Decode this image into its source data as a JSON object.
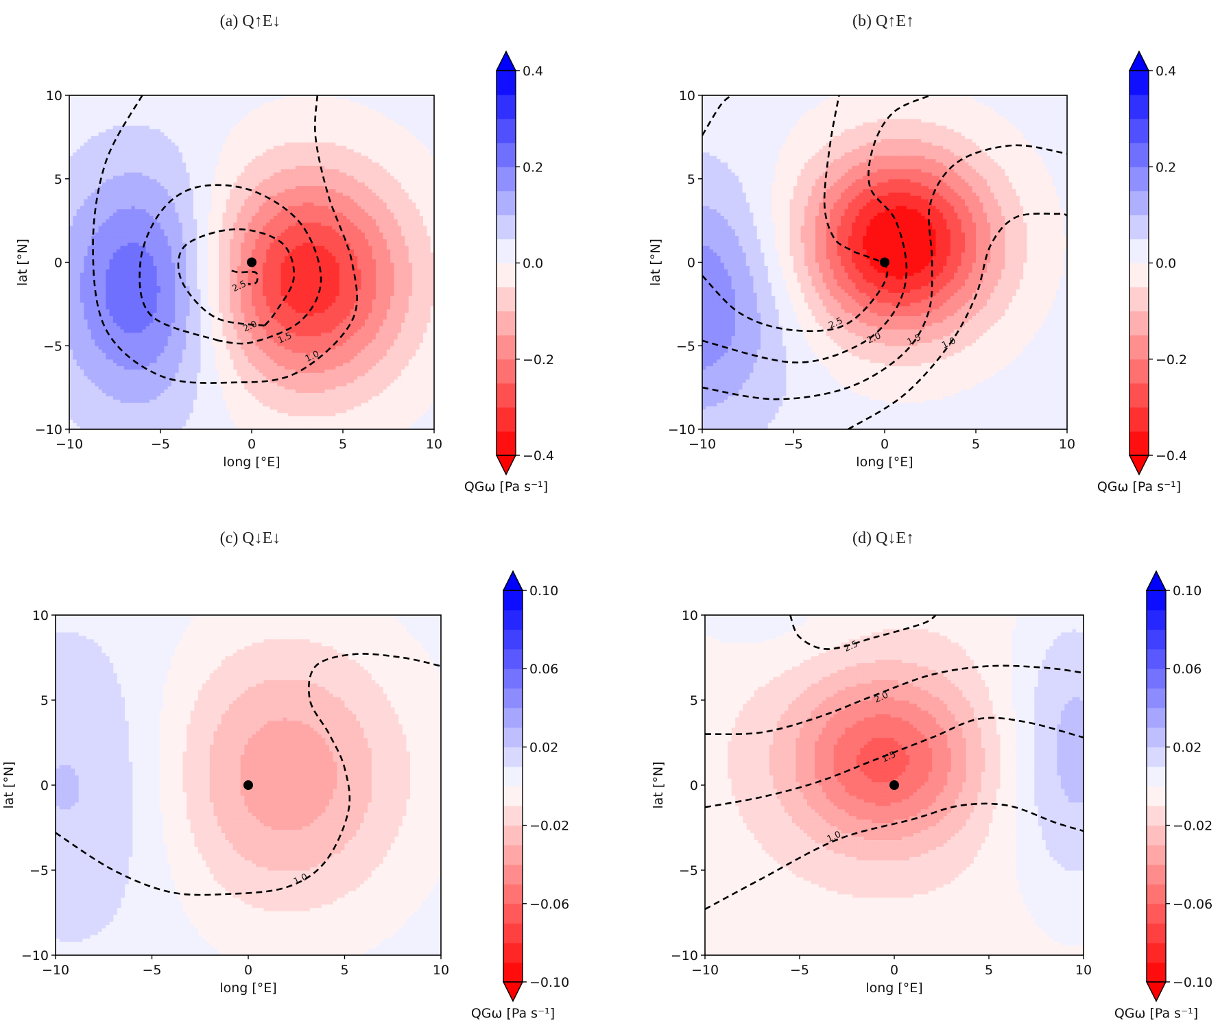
{
  "chart_data": [
    {
      "id": "a",
      "type": "heatmap",
      "title": "(a) Q↑E↓",
      "xlabel": "long [°E]",
      "ylabel": "lat [°N]",
      "xlim": [
        -10,
        10
      ],
      "ylim": [
        -10,
        10
      ],
      "xticks": [
        -10,
        -5,
        0,
        5,
        10
      ],
      "yticks": [
        -10,
        -5,
        0,
        5,
        10
      ],
      "xtick_labels": [
        "−10",
        "−5",
        "0",
        "5",
        "10"
      ],
      "ytick_labels": [
        "−10",
        "−5",
        "0",
        "5",
        "10"
      ],
      "colorbar": {
        "label": "QGω [Pa s⁻¹]",
        "range": [
          -0.4,
          0.4
        ],
        "step": 0.05,
        "ticks": [
          0.4,
          0.2,
          0.0,
          -0.2,
          -0.4
        ],
        "tick_labels": [
          "0.4",
          "0.2",
          "0.0",
          "−0.2",
          "−0.4"
        ],
        "extend": "both"
      },
      "background_value": 0.02,
      "features": [
        {
          "kind": "min",
          "x": 3.0,
          "y": -1.0,
          "amp": -0.36,
          "sx": 5.5,
          "sy": 6.5
        },
        {
          "kind": "max",
          "x": -6.0,
          "y": -1.5,
          "amp": 0.23,
          "sx": 4.5,
          "sy": 7.0
        }
      ],
      "marker": {
        "x": 0,
        "y": 0
      },
      "contours": [
        {
          "level": "1.0",
          "label_at": [
            3.3,
            -5.6
          ],
          "points": [
            [
              -6,
              10
            ],
            [
              -8,
              6
            ],
            [
              -8.7,
              1
            ],
            [
              -8,
              -4
            ],
            [
              -5,
              -6.8
            ],
            [
              -1,
              -7.2
            ],
            [
              2.5,
              -6.6
            ],
            [
              5.5,
              -3.5
            ],
            [
              5.5,
              0
            ],
            [
              4.2,
              4
            ],
            [
              3.5,
              7.5
            ],
            [
              3.6,
              10
            ]
          ]
        },
        {
          "level": "1.5",
          "label_at": [
            1.8,
            -4.5
          ],
          "points": [
            [
              -1.8,
              -4.7
            ],
            [
              -5.5,
              -3.2
            ],
            [
              -6.1,
              0
            ],
            [
              -5,
              3
            ],
            [
              -3,
              4.5
            ],
            [
              0,
              4.3
            ],
            [
              2.7,
              2.3
            ],
            [
              3.8,
              -1
            ],
            [
              2.7,
              -3.5
            ],
            [
              0,
              -4.8
            ],
            [
              -1.8,
              -4.7
            ]
          ]
        },
        {
          "level": "2.0",
          "label_at": [
            -0.1,
            -3.8
          ],
          "points": [
            [
              0.7,
              -3.8
            ],
            [
              -2,
              -3.3
            ],
            [
              -3.8,
              -1.2
            ],
            [
              -3.8,
              0.8
            ],
            [
              -2,
              1.8
            ],
            [
              0,
              1.9
            ],
            [
              1.8,
              1
            ],
            [
              2.3,
              -1
            ],
            [
              1.3,
              -3
            ],
            [
              0.7,
              -3.8
            ]
          ]
        },
        {
          "level": "2.5",
          "label_at": [
            -0.7,
            -1.4
          ],
          "points": [
            [
              -1.1,
              -0.5
            ],
            [
              -0.7,
              -0.6
            ],
            [
              0.2,
              -0.6
            ],
            [
              0.3,
              -1.1
            ],
            [
              0.1,
              -1.3
            ],
            [
              -0.2,
              -1.3
            ]
          ]
        }
      ]
    },
    {
      "id": "b",
      "type": "heatmap",
      "title": "(b) Q↑E↑",
      "xlabel": "long [°E]",
      "ylabel": "lat [°N]",
      "xlim": [
        -10,
        10
      ],
      "ylim": [
        -10,
        10
      ],
      "xticks": [
        -10,
        -5,
        0,
        5,
        10
      ],
      "yticks": [
        -10,
        -5,
        0,
        5,
        10
      ],
      "xtick_labels": [
        "−10",
        "−5",
        "0",
        "5",
        "10"
      ],
      "ytick_labels": [
        "−10",
        "−5",
        "0",
        "5",
        "10"
      ],
      "colorbar": {
        "label": "QGω [Pa s⁻¹]",
        "range": [
          -0.4,
          0.4
        ],
        "step": 0.05,
        "ticks": [
          0.4,
          0.2,
          0.0,
          -0.2,
          -0.4
        ],
        "tick_labels": [
          "0.4",
          "0.2",
          "0.0",
          "−0.2",
          "−0.4"
        ],
        "extend": "both"
      },
      "background_value": 0.02,
      "features": [
        {
          "kind": "min",
          "x": 0.8,
          "y": 1.2,
          "amp": -0.43,
          "sx": 5.2,
          "sy": 5.5
        },
        {
          "kind": "max",
          "x": -10.5,
          "y": -2.5,
          "amp": 0.18,
          "sx": 5.0,
          "sy": 7.0
        }
      ],
      "marker": {
        "x": 0,
        "y": 0
      },
      "contours": [
        {
          "level": "1.0",
          "label_at": [
            3.5,
            -4.8
          ],
          "points": [
            [
              -2,
              -10
            ],
            [
              1,
              -8
            ],
            [
              3.5,
              -5
            ],
            [
              5,
              -2
            ],
            [
              5.8,
              1
            ],
            [
              7.2,
              2.7
            ],
            [
              9.5,
              2.9
            ],
            [
              10,
              2.8
            ]
          ]
        },
        {
          "level": "1.5",
          "label_at": [
            1.6,
            -4.6
          ],
          "points": [
            [
              -10,
              -7.5
            ],
            [
              -6,
              -8.2
            ],
            [
              -2,
              -7.5
            ],
            [
              1,
              -5.5
            ],
            [
              2.4,
              -3
            ],
            [
              2.6,
              0
            ],
            [
              2.5,
              3.5
            ],
            [
              4,
              6
            ],
            [
              7,
              7
            ],
            [
              10,
              6.5
            ]
          ]
        },
        {
          "level": "2.0",
          "label_at": [
            -0.6,
            -4.5
          ],
          "points": [
            [
              -10,
              -4.7
            ],
            [
              -5,
              -6
            ],
            [
              -1.5,
              -5
            ],
            [
              0.5,
              -3
            ],
            [
              1.2,
              -0.5
            ],
            [
              0.6,
              2.5
            ],
            [
              -0.8,
              4.5
            ],
            [
              -0.6,
              7
            ],
            [
              0.5,
              9
            ],
            [
              2.5,
              10
            ]
          ]
        },
        {
          "level": "2.5",
          "label_at": [
            -2.7,
            -3.6
          ],
          "points": [
            [
              -10,
              -0.8
            ],
            [
              -8,
              -3
            ],
            [
              -5.5,
              -4
            ],
            [
              -2.5,
              -3.9
            ],
            [
              -0.6,
              -2.2
            ],
            [
              0.1,
              -0.3
            ],
            [
              -1.8,
              0.7
            ],
            [
              -2.8,
              1.5
            ],
            [
              -3.3,
              3.5
            ],
            [
              -3,
              7
            ],
            [
              -2.5,
              10
            ]
          ]
        },
        {
          "level": "3.0",
          "label_at": null,
          "points": [
            [
              -10,
              7.6
            ],
            [
              -9,
              9.4
            ],
            [
              -8.4,
              10
            ]
          ]
        }
      ]
    },
    {
      "id": "c",
      "type": "heatmap",
      "title": "(c) Q↓E↓",
      "xlabel": "long [°E]",
      "ylabel": "lat [°N]",
      "xlim": [
        -10,
        10
      ],
      "ylim": [
        -10,
        10
      ],
      "xticks": [
        -10,
        -5,
        0,
        5,
        10
      ],
      "yticks": [
        -10,
        -5,
        0,
        5,
        10
      ],
      "xtick_labels": [
        "−10",
        "−5",
        "0",
        "5",
        "10"
      ],
      "ytick_labels": [
        "−10",
        "−5",
        "0",
        "5",
        "10"
      ],
      "colorbar": {
        "label": "QGω [Pa s⁻¹]",
        "range": [
          -0.1,
          0.1
        ],
        "step": 0.01,
        "ticks": [
          0.1,
          0.06,
          0.02,
          -0.02,
          -0.06,
          -0.1
        ],
        "tick_labels": [
          "0.10",
          "0.06",
          "0.02",
          "−0.02",
          "−0.06",
          "−0.10"
        ],
        "extend": "both"
      },
      "background_value": 0.005,
      "features": [
        {
          "kind": "min",
          "x": 1.8,
          "y": 0.6,
          "amp": -0.042,
          "sx": 6.5,
          "sy": 8.0
        },
        {
          "kind": "max",
          "x": -8.5,
          "y": 0.0,
          "amp": 0.018,
          "sx": 5.5,
          "sy": 8.5
        }
      ],
      "marker": {
        "x": 0,
        "y": 0
      },
      "contours": [
        {
          "level": "1.0",
          "label_at": [
            2.7,
            -5.5
          ],
          "points": [
            [
              -10,
              -2.8
            ],
            [
              -7,
              -5
            ],
            [
              -4,
              -6.3
            ],
            [
              -1,
              -6.4
            ],
            [
              2,
              -6
            ],
            [
              4,
              -4.5
            ],
            [
              5.2,
              -1.5
            ],
            [
              5,
              1
            ],
            [
              4.2,
              3
            ],
            [
              3.2,
              5
            ],
            [
              3.5,
              7
            ],
            [
              5.5,
              7.7
            ],
            [
              8,
              7.5
            ],
            [
              10,
              7
            ]
          ]
        }
      ]
    },
    {
      "id": "d",
      "type": "heatmap",
      "title": "(d) Q↓E↑",
      "xlabel": "long [°E]",
      "ylabel": "lat [°N]",
      "xlim": [
        -10,
        10
      ],
      "ylim": [
        -10,
        10
      ],
      "xticks": [
        -10,
        -5,
        0,
        5,
        10
      ],
      "yticks": [
        -10,
        -5,
        0,
        5,
        10
      ],
      "xtick_labels": [
        "−10",
        "−5",
        "0",
        "5",
        "10"
      ],
      "ytick_labels": [
        "−10",
        "−5",
        "0",
        "5",
        "10"
      ],
      "colorbar": {
        "label": "QGω [Pa s⁻¹]",
        "range": [
          -0.1,
          0.1
        ],
        "step": 0.01,
        "ticks": [
          0.1,
          0.06,
          0.02,
          -0.02,
          -0.06,
          -0.1
        ],
        "tick_labels": [
          "0.10",
          "0.06",
          "0.02",
          "−0.02",
          "−0.06",
          "−0.10"
        ],
        "extend": "both"
      },
      "background_value": -0.006,
      "features": [
        {
          "kind": "min",
          "x": -0.6,
          "y": 1.5,
          "amp": -0.058,
          "sx": 5.0,
          "sy": 5.0
        },
        {
          "kind": "max",
          "x": 9.5,
          "y": 2.0,
          "amp": 0.03,
          "sx": 3.5,
          "sy": 9.0
        },
        {
          "kind": "max",
          "x": -7,
          "y": 10,
          "amp": 0.01,
          "sx": 5.0,
          "sy": 3.0
        }
      ],
      "marker": {
        "x": 0,
        "y": 0
      },
      "contours": [
        {
          "level": "1.0",
          "label_at": [
            -3.2,
            -3.0
          ],
          "points": [
            [
              -10,
              -7.3
            ],
            [
              -7,
              -5.5
            ],
            [
              -3,
              -3.2
            ],
            [
              1,
              -2
            ],
            [
              3.5,
              -1.2
            ],
            [
              6,
              -1.2
            ],
            [
              8.5,
              -2.2
            ],
            [
              10,
              -2.7
            ]
          ]
        },
        {
          "level": "1.5",
          "label_at": [
            -0.3,
            1.7
          ],
          "points": [
            [
              -10,
              -1.3
            ],
            [
              -7,
              -0.7
            ],
            [
              -4,
              0.2
            ],
            [
              -1,
              1.5
            ],
            [
              2,
              2.8
            ],
            [
              4.5,
              3.9
            ],
            [
              7,
              3.7
            ],
            [
              10,
              2.8
            ]
          ]
        },
        {
          "level": "2.0",
          "label_at": [
            -0.7,
            5.2
          ],
          "points": [
            [
              -10,
              3
            ],
            [
              -7,
              3.1
            ],
            [
              -4,
              4
            ],
            [
              -1,
              5.3
            ],
            [
              2,
              6.5
            ],
            [
              5,
              7
            ],
            [
              8,
              6.9
            ],
            [
              10,
              6.6
            ]
          ]
        },
        {
          "level": "2.5",
          "label_at": [
            -2.3,
            8.2
          ],
          "points": [
            [
              -5.5,
              10
            ],
            [
              -5,
              8.7
            ],
            [
              -3.5,
              8
            ],
            [
              -1,
              8.7
            ],
            [
              1.5,
              9.5
            ],
            [
              2.2,
              10
            ]
          ]
        }
      ]
    }
  ]
}
